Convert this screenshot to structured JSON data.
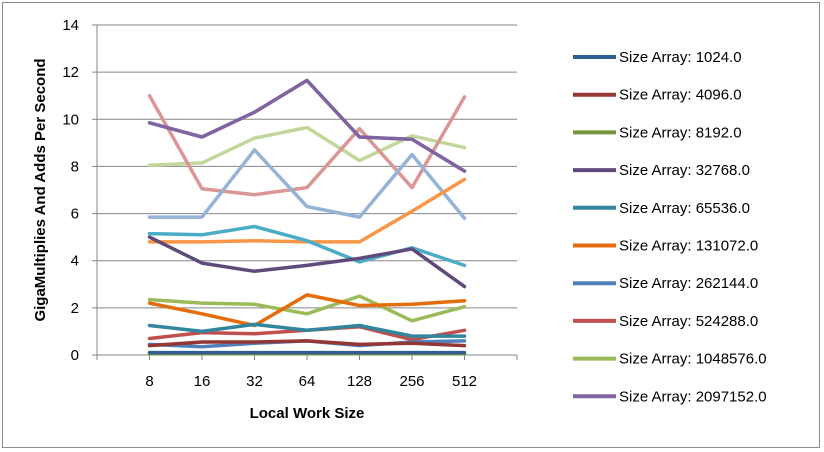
{
  "chart_data": {
    "type": "line",
    "title": "",
    "xlabel": "Local Work Size",
    "ylabel": "GigaMultiplies And Adds Per Second",
    "x": [
      "8",
      "16",
      "32",
      "64",
      "128",
      "256",
      "512"
    ],
    "ylim": [
      0,
      14
    ],
    "yticks": [
      "0",
      "2",
      "4",
      "6",
      "8",
      "10",
      "12",
      "14"
    ],
    "grid": "horizontal",
    "legend_position": "right",
    "series": [
      {
        "name": "Size Array: 1024.0",
        "color": "#2f5d8f",
        "values": [
          0.1,
          0.1,
          0.1,
          0.1,
          0.1,
          0.1,
          0.1
        ]
      },
      {
        "name": "Size Array: 4096.0",
        "color": "#943634",
        "values": [
          0.4,
          0.55,
          0.55,
          0.6,
          0.45,
          0.5,
          0.4
        ]
      },
      {
        "name": "Size Array: 8192.0",
        "color": "#77933c",
        "values": [
          0.05,
          0.05,
          0.05,
          0.05,
          0.05,
          0.05,
          0.05
        ]
      },
      {
        "name": "Size Array: 32768.0",
        "color": "#604a7b",
        "values": [
          5.0,
          3.9,
          3.55,
          3.8,
          4.1,
          4.5,
          2.9
        ]
      },
      {
        "name": "Size Array: 65536.0",
        "color": "#31859c",
        "values": [
          1.25,
          1.0,
          1.3,
          1.05,
          1.25,
          0.8,
          0.8
        ]
      },
      {
        "name": "Size Array: 131072.0",
        "color": "#e46c0a",
        "values": [
          2.2,
          1.75,
          1.25,
          2.55,
          2.1,
          2.15,
          2.3
        ]
      },
      {
        "name": "Size Array: 262144.0",
        "color": "#4f81bd",
        "values": [
          0.45,
          0.35,
          0.5,
          0.6,
          0.4,
          0.55,
          0.6
        ]
      },
      {
        "name": "Size Array: 524288.0",
        "color": "#c0504d",
        "values": [
          0.7,
          0.95,
          0.9,
          1.05,
          1.2,
          0.65,
          1.05
        ]
      },
      {
        "name": "Size Array: 1048576.0",
        "color": "#9bbb59",
        "values": [
          2.35,
          2.2,
          2.15,
          1.75,
          2.5,
          1.45,
          2.05
        ]
      },
      {
        "name": "Size Array: 2097152.0",
        "color": "#8064a2",
        "values": [
          9.85,
          9.25,
          10.3,
          11.65,
          9.25,
          9.15,
          7.8
        ]
      },
      {
        "color": "#4bacc6",
        "values": [
          5.15,
          5.1,
          5.45,
          4.85,
          3.95,
          4.55,
          3.8
        ]
      },
      {
        "color": "#f79646",
        "values": [
          4.8,
          4.8,
          4.85,
          4.8,
          4.8,
          6.1,
          7.45
        ]
      },
      {
        "color": "#95b3d7",
        "values": [
          5.85,
          5.85,
          8.7,
          6.3,
          5.85,
          8.5,
          5.8
        ]
      },
      {
        "color": "#d99694",
        "values": [
          11.0,
          7.05,
          6.8,
          7.1,
          9.6,
          7.1,
          10.95
        ]
      },
      {
        "color": "#c3d69b",
        "values": [
          8.05,
          8.15,
          9.2,
          9.65,
          8.25,
          9.3,
          8.8
        ]
      },
      {
        "color": "#b3a2c7",
        "values": [
          9.85,
          9.25,
          10.3,
          11.65,
          9.25,
          9.15,
          7.8
        ]
      }
    ]
  }
}
